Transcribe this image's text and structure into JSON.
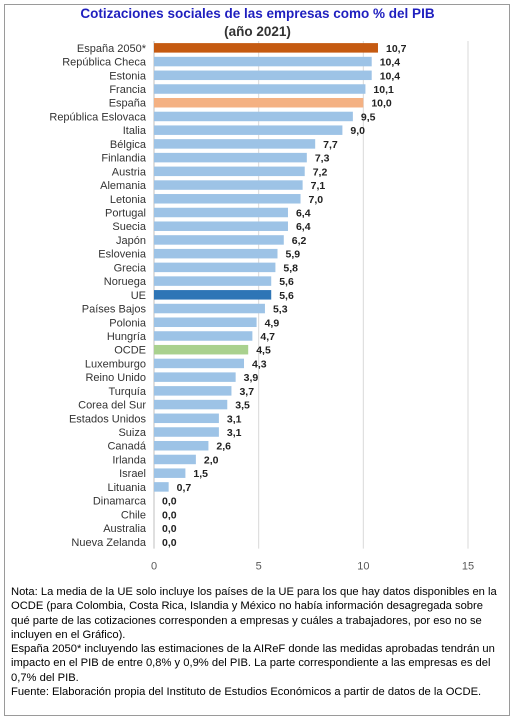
{
  "chart_data": {
    "type": "bar",
    "orientation": "horizontal",
    "title": "Cotizaciones sociales de las empresas como % del PIB",
    "subtitle": "(año 2021)",
    "categories": [
      "España 2050*",
      "República Checa",
      "Estonia",
      "Francia",
      "España",
      "República Eslovaca",
      "Italia",
      "Bélgica",
      "Finlandia",
      "Austria",
      "Alemania",
      "Letonia",
      "Portugal",
      "Suecia",
      "Japón",
      "Eslovenia",
      "Grecia",
      "Noruega",
      "UE",
      "Países Bajos",
      "Polonia",
      "Hungría",
      "OCDE",
      "Luxemburgo",
      "Reino Unido",
      "Turquía",
      "Corea del Sur",
      "Estados Unidos",
      "Suiza",
      "Canadá",
      "Irlanda",
      "Israel",
      "Lituania",
      "Dinamarca",
      "Chile",
      "Australia",
      "Nueva Zelanda"
    ],
    "values": [
      10.7,
      10.4,
      10.4,
      10.1,
      10.0,
      9.5,
      9.0,
      7.7,
      7.3,
      7.2,
      7.1,
      7.0,
      6.4,
      6.4,
      6.2,
      5.9,
      5.8,
      5.6,
      5.6,
      5.3,
      4.9,
      4.7,
      4.5,
      4.3,
      3.9,
      3.7,
      3.5,
      3.1,
      3.1,
      2.6,
      2.0,
      1.5,
      0.7,
      0.0,
      0.0,
      0.0,
      0.0
    ],
    "value_labels": [
      "10,7",
      "10,4",
      "10,4",
      "10,1",
      "10,0",
      "9,5",
      "9,0",
      "7,7",
      "7,3",
      "7,2",
      "7,1",
      "7,0",
      "6,4",
      "6,4",
      "6,2",
      "5,9",
      "5,8",
      "5,6",
      "5,6",
      "5,3",
      "4,9",
      "4,7",
      "4,5",
      "4,3",
      "3,9",
      "3,7",
      "3,5",
      "3,1",
      "3,1",
      "2,6",
      "2,0",
      "1,5",
      "0,7",
      "0,0",
      "0,0",
      "0,0",
      "0,0"
    ],
    "bar_colors": [
      "#c55a11",
      "#9dc3e6",
      "#9dc3e6",
      "#9dc3e6",
      "#f4b183",
      "#9dc3e6",
      "#9dc3e6",
      "#9dc3e6",
      "#9dc3e6",
      "#9dc3e6",
      "#9dc3e6",
      "#9dc3e6",
      "#9dc3e6",
      "#9dc3e6",
      "#9dc3e6",
      "#9dc3e6",
      "#9dc3e6",
      "#9dc3e6",
      "#2e75b6",
      "#9dc3e6",
      "#9dc3e6",
      "#9dc3e6",
      "#a9d18e",
      "#9dc3e6",
      "#9dc3e6",
      "#9dc3e6",
      "#9dc3e6",
      "#9dc3e6",
      "#9dc3e6",
      "#9dc3e6",
      "#9dc3e6",
      "#9dc3e6",
      "#9dc3e6",
      "#9dc3e6",
      "#9dc3e6",
      "#9dc3e6",
      "#9dc3e6"
    ],
    "xlim": [
      0,
      15
    ],
    "xticks": [
      0,
      5,
      10,
      15
    ],
    "grid": true,
    "legend": false
  },
  "notes": [
    "Nota: La media de la UE solo incluye los países de la UE para los que hay datos disponibles en la OCDE (para Colombia, Costa Rica, Islandia y México no había información desagregada sobre qué parte de las cotizaciones corresponden a empresas y cuáles a trabajadores, por eso no se incluyen en el Gráfico).",
    "España 2050* incluyendo las estimaciones de la AIReF donde las medidas aprobadas tendrán un impacto en el PIB de entre 0,8% y 0,9% del PIB. La parte correspondiente a las empresas es del 0,7% del PIB.",
    "Fuente: Elaboración propia del Instituto de Estudios Económicos a partir de datos de la OCDE."
  ]
}
